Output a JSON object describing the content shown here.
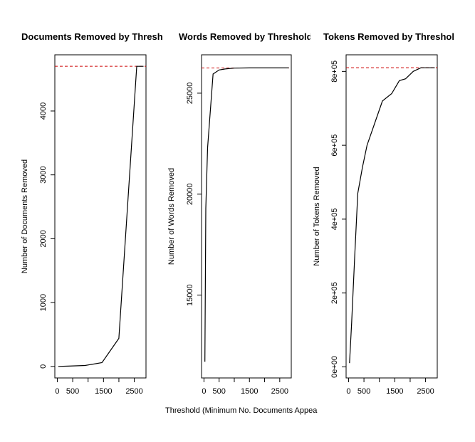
{
  "figure": {
    "xlabel": "Threshold (Minimum No. Documents Appea"
  },
  "chart_data": [
    {
      "type": "line",
      "title": "Documents Removed by Thresh",
      "xlabel": "",
      "ylabel": "Number of Documents Removed",
      "xlim": [
        -80,
        2880
      ],
      "ylim": [
        -180,
        4880
      ],
      "xticks": [
        0,
        500,
        1000,
        1500,
        2000,
        2500
      ],
      "xtick_labels": [
        "0",
        "500",
        "",
        "1500",
        "",
        "2500"
      ],
      "yticks": [
        0,
        1000,
        2000,
        3000,
        4000
      ],
      "ytick_labels": [
        "0",
        "1000",
        "2000",
        "3000",
        "4000"
      ],
      "grid": false,
      "ref_line": {
        "y": 4700,
        "color": "#cc0000",
        "style": "dashed"
      },
      "series": [
        {
          "x": [
            30,
            350,
            900,
            1450,
            2000,
            2580,
            2800
          ],
          "y": [
            0,
            5,
            15,
            60,
            440,
            4700,
            4700
          ]
        }
      ]
    },
    {
      "type": "line",
      "title": "Words Removed by Threshold",
      "xlabel": "",
      "ylabel": "Number of Words Removed",
      "xlim": [
        -80,
        2880
      ],
      "ylim": [
        10900,
        26900
      ],
      "xticks": [
        0,
        500,
        1000,
        1500,
        2000,
        2500
      ],
      "xtick_labels": [
        "0",
        "500",
        "",
        "1500",
        "",
        "2500"
      ],
      "yticks": [
        15000,
        20000,
        25000
      ],
      "ytick_labels": [
        "15000",
        "20000",
        "25000"
      ],
      "grid": false,
      "ref_line": {
        "y": 26250,
        "color": "#cc0000",
        "style": "dashed"
      },
      "series": [
        {
          "x": [
            30,
            60,
            120,
            300,
            500,
            700,
            1000,
            1500,
            2000,
            2500,
            2800
          ],
          "y": [
            11700,
            19300,
            22300,
            25950,
            26150,
            26200,
            26240,
            26250,
            26250,
            26250,
            26250
          ]
        }
      ]
    },
    {
      "type": "line",
      "title": "Tokens Removed by Threshol",
      "xlabel": "",
      "ylabel": "Number of Tokens Removed",
      "xlim": [
        -80,
        2880
      ],
      "ylim": [
        -30000,
        845000
      ],
      "xticks": [
        0,
        500,
        1000,
        1500,
        2000,
        2500
      ],
      "xtick_labels": [
        "0",
        "500",
        "",
        "1500",
        "",
        "2500"
      ],
      "yticks": [
        0,
        200000,
        400000,
        600000,
        800000
      ],
      "ytick_labels": [
        "0e+00",
        "2e+05",
        "4e+05",
        "6e+05",
        "8e+05"
      ],
      "grid": false,
      "ref_line": {
        "y": 810000,
        "color": "#cc0000",
        "style": "dashed"
      },
      "series": [
        {
          "x": [
            30,
            100,
            200,
            300,
            450,
            600,
            850,
            1100,
            1400,
            1650,
            1850,
            2100,
            2350,
            2500,
            2800
          ],
          "y": [
            10000,
            120000,
            300000,
            470000,
            540000,
            600000,
            660000,
            720000,
            740000,
            775000,
            780000,
            800000,
            810000,
            810000,
            810000
          ]
        }
      ]
    }
  ]
}
